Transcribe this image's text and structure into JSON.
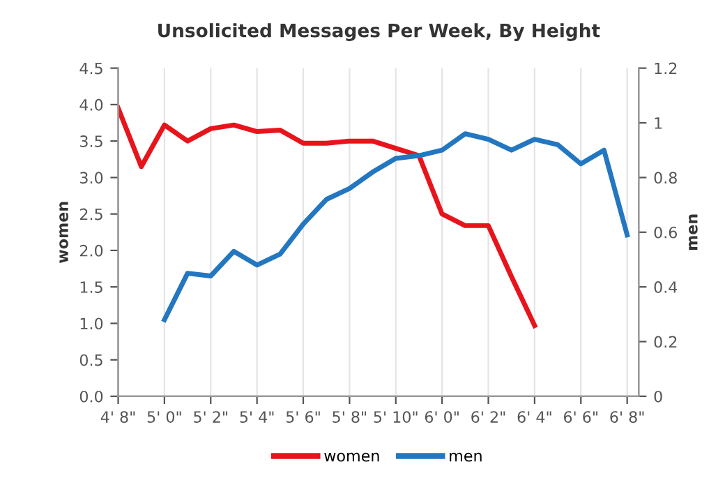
{
  "chart_data": {
    "type": "line",
    "title": "Unsolicited Messages Per Week, By Height",
    "ylabel": "women",
    "y2label": "men",
    "categories": [
      "4' 8\"",
      null,
      "5' 0\"",
      null,
      "5' 2\"",
      null,
      "5' 4\"",
      null,
      "5' 6\"",
      null,
      "5' 8\"",
      null,
      "5' 10\"",
      null,
      "6' 0\"",
      null,
      "6' 2\"",
      null,
      "6' 4\"",
      null,
      "6' 6\"",
      null,
      "6' 8\""
    ],
    "series": [
      {
        "name": "women",
        "color": "#e8141c",
        "values": [
          3.95,
          3.15,
          3.72,
          3.5,
          3.67,
          3.72,
          3.63,
          3.65,
          3.47,
          3.47,
          3.5,
          3.5,
          3.4,
          3.3,
          2.5,
          2.34,
          2.34,
          1.64,
          0.97,
          null,
          null,
          null,
          null
        ]
      },
      {
        "name": "men",
        "color": "#2377c0",
        "axis": "y2",
        "values": [
          null,
          null,
          0.28,
          0.45,
          0.44,
          0.53,
          0.48,
          0.52,
          0.63,
          0.72,
          0.76,
          0.82,
          0.87,
          0.88,
          0.9,
          0.96,
          0.94,
          0.9,
          0.94,
          0.92,
          0.85,
          0.9,
          0.59
        ]
      }
    ],
    "ylim": [
      0,
      4.5
    ],
    "yticks": [
      {
        "value": 0,
        "label": "0.0"
      },
      {
        "value": 0.5,
        "label": "0.5"
      },
      {
        "value": 1,
        "label": "1.0"
      },
      {
        "value": 1.5,
        "label": "1.5"
      },
      {
        "value": 2,
        "label": "2.0"
      },
      {
        "value": 2.5,
        "label": "2.5"
      },
      {
        "value": 3,
        "label": "3.0"
      },
      {
        "value": 3.5,
        "label": "3.5"
      },
      {
        "value": 4,
        "label": "4.0"
      },
      {
        "value": 4.5,
        "label": "4.5"
      }
    ],
    "y2lim": [
      0,
      1.2
    ],
    "y2ticks": [
      0,
      0.2,
      0.4,
      0.6,
      0.8,
      1,
      1.2
    ],
    "grid": "x",
    "legend": "bottom",
    "marker": "none",
    "line_style": "solid"
  }
}
